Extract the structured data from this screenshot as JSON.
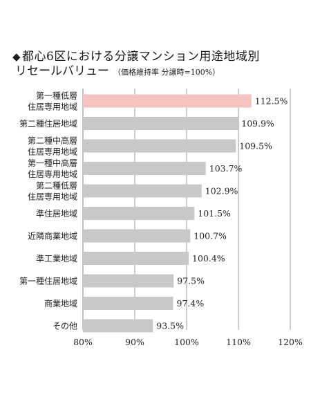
{
  "title": {
    "marker": "◆",
    "line1": "都心6区における分譲マンション用途地域別",
    "line2": "リセールバリュー",
    "note": "（価格維持率 分譲時=100%）"
  },
  "colors": {
    "highlight_bar": "#f4c3c0",
    "bar": "#c8c8cb",
    "gridline": "#9a9a9a"
  },
  "chart_data": {
    "type": "bar",
    "orientation": "horizontal",
    "categories": [
      [
        "第一種低層",
        "住居専用地域"
      ],
      [
        "第二種住居地域"
      ],
      [
        "第二種中高層",
        "住居専用地域"
      ],
      [
        "第一種中高層",
        "住居専用地域"
      ],
      [
        "第二種低層",
        "住居専用地域"
      ],
      [
        "準住居地域"
      ],
      [
        "近隣商業地域"
      ],
      [
        "準工業地域"
      ],
      [
        "第一種住居地域"
      ],
      [
        "商業地域"
      ],
      [
        "その他"
      ]
    ],
    "values": [
      112.5,
      109.9,
      109.5,
      103.7,
      102.9,
      101.5,
      100.7,
      100.4,
      97.5,
      97.4,
      93.5
    ],
    "value_labels": [
      "112.5%",
      "109.9%",
      "109.5%",
      "103.7%",
      "102.9%",
      "101.5%",
      "100.7%",
      "100.4%",
      "97.5%",
      "97.4%",
      "93.5%"
    ],
    "highlight_index": 0,
    "xlim": [
      80,
      120
    ],
    "xticks": [
      80,
      90,
      100,
      110,
      120
    ],
    "xtick_labels": [
      "80%",
      "90%",
      "100%",
      "110%",
      "120%"
    ],
    "grid": "vertical"
  }
}
